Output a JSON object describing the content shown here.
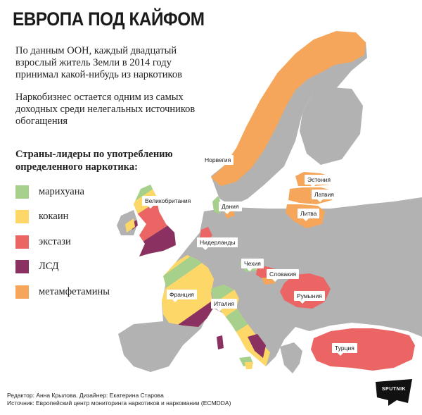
{
  "title": "ЕВРОПА ПОД КАЙФОМ",
  "lead": {
    "paragraph1": "По данным ООН, каждый двадцатый взрослый житель Земли в 2014 году принимал какой-нибудь из наркотиков",
    "paragraph2": "Наркобизнес остается одним из самых доходных среди нелегальных источников обогащения"
  },
  "legend": {
    "title": "Страны-лидеры по употреблению определенного наркотика:",
    "items": [
      {
        "key": "marijuana",
        "label": "марихуана",
        "color": "#a8d08d"
      },
      {
        "key": "cocaine",
        "label": "кокаин",
        "color": "#fdd868"
      },
      {
        "key": "ecstasy",
        "label": "экстази",
        "color": "#ec6565"
      },
      {
        "key": "lsd",
        "label": "ЛСД",
        "color": "#8b3161"
      },
      {
        "key": "meth",
        "label": "метамфетамины",
        "color": "#f5a65a"
      }
    ]
  },
  "map": {
    "base_color": "#b2b2b2",
    "countries": [
      {
        "key": "norway",
        "label": "Норвегия",
        "drugs": [
          "meth"
        ]
      },
      {
        "key": "estonia",
        "label": "Эстония",
        "drugs": [
          "meth"
        ]
      },
      {
        "key": "latvia",
        "label": "Латвия",
        "drugs": [
          "meth"
        ]
      },
      {
        "key": "lithuania",
        "label": "Литва",
        "drugs": [
          "meth"
        ]
      },
      {
        "key": "uk",
        "label": "Великобритания",
        "drugs": [
          "marijuana",
          "cocaine",
          "ecstasy",
          "lsd"
        ]
      },
      {
        "key": "denmark",
        "label": "Дания",
        "drugs": [
          "marijuana",
          "meth"
        ]
      },
      {
        "key": "netherlands",
        "label": "Нидерланды",
        "drugs": [
          "ecstasy"
        ]
      },
      {
        "key": "czechia",
        "label": "Чехия",
        "drugs": [
          "marijuana",
          "meth"
        ]
      },
      {
        "key": "slovakia",
        "label": "Словакия",
        "drugs": [
          "ecstasy",
          "meth"
        ]
      },
      {
        "key": "france",
        "label": "Франция",
        "drugs": [
          "marijuana",
          "cocaine",
          "lsd"
        ]
      },
      {
        "key": "italy",
        "label": "Италия",
        "drugs": [
          "marijuana",
          "cocaine",
          "lsd"
        ]
      },
      {
        "key": "romania",
        "label": "Румыния",
        "drugs": [
          "ecstasy"
        ]
      },
      {
        "key": "turkey",
        "label": "Турция",
        "drugs": [
          "ecstasy"
        ]
      }
    ]
  },
  "credits": {
    "line1": "Редактор: Анна Крылова. Дизайнер: Екатерина Старова",
    "line2": "Источник: Европейский центр мониторинга наркотиков и наркомании (ECMDDA)"
  },
  "logo": {
    "text": "SPUTNIK",
    "color": "#111111"
  }
}
